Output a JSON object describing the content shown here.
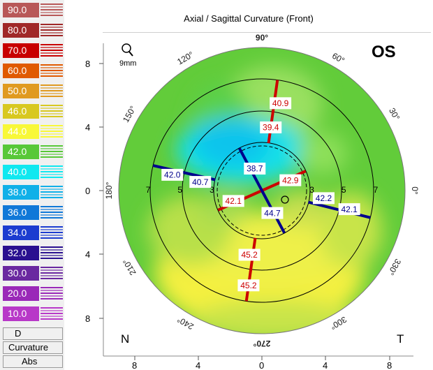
{
  "title": "Axial / Sagittal Curvature (Front)",
  "eye": "OS",
  "zoom_label": "9mm",
  "nasal_label": "N",
  "temporal_label": "T",
  "scale": {
    "items": [
      {
        "label": "90.0",
        "color": "#b85858"
      },
      {
        "label": "80.0",
        "color": "#a02828"
      },
      {
        "label": "70.0",
        "color": "#c80000"
      },
      {
        "label": "60.0",
        "color": "#e05a00"
      },
      {
        "label": "50.0",
        "color": "#e09a20"
      },
      {
        "label": "46.0",
        "color": "#d8c820"
      },
      {
        "label": "44.0",
        "color": "#f8f838"
      },
      {
        "label": "42.0",
        "color": "#58c838"
      },
      {
        "label": "40.0",
        "color": "#10e8f0"
      },
      {
        "label": "38.0",
        "color": "#10b0e8"
      },
      {
        "label": "36.0",
        "color": "#1078d8"
      },
      {
        "label": "34.0",
        "color": "#1c3cd0"
      },
      {
        "label": "32.0",
        "color": "#2a1090"
      },
      {
        "label": "30.0",
        "color": "#6a28a0"
      },
      {
        "label": "20.0",
        "color": "#9a28b8"
      },
      {
        "label": "10.0",
        "color": "#b838c8"
      }
    ],
    "d_label": "D",
    "curvature_label": "Curvature",
    "abs_label": "Abs"
  },
  "angles": [
    {
      "label": "90°",
      "deg": 90
    },
    {
      "label": "60°",
      "deg": 60
    },
    {
      "label": "30°",
      "deg": 30
    },
    {
      "label": "0°",
      "deg": 0
    },
    {
      "label": "330°",
      "deg": 330
    },
    {
      "label": "300°",
      "deg": 300
    },
    {
      "label": "270°",
      "deg": 270
    },
    {
      "label": "240°",
      "deg": 240
    },
    {
      "label": "210°",
      "deg": 210
    },
    {
      "label": "180°",
      "deg": 180
    },
    {
      "label": "150°",
      "deg": 150
    },
    {
      "label": "120°",
      "deg": 120
    }
  ],
  "y_ticks": [
    "8",
    "4",
    "0",
    "4",
    "8"
  ],
  "x_ticks": [
    "8",
    "4",
    "0",
    "4",
    "8"
  ],
  "ring_labels": {
    "r3": "3",
    "r5": "5",
    "r7": "7"
  },
  "meridians": {
    "steep": {
      "color": "#cc0000",
      "values": [
        {
          "text": "40.9",
          "deg": 78,
          "r": 5.6
        },
        {
          "text": "39.4",
          "deg": 82,
          "r": 4.0
        },
        {
          "text": "42.9",
          "deg": 20,
          "r": 1.9
        },
        {
          "text": "42.1",
          "deg": 200,
          "r": 1.9
        },
        {
          "text": "45.2",
          "deg": 259,
          "r": 4.1
        },
        {
          "text": "45.2",
          "deg": 262,
          "r": 6.0
        }
      ]
    },
    "flat": {
      "color": "#00008c",
      "values": [
        {
          "text": "38.7",
          "deg": 108,
          "r": 1.45
        },
        {
          "text": "44.7",
          "deg": 295,
          "r": 1.55
        },
        {
          "text": "42.0",
          "deg": 170,
          "r": 5.7
        },
        {
          "text": "40.7",
          "deg": 172,
          "r": 3.9
        },
        {
          "text": "42.2",
          "deg": 353,
          "r": 3.9
        },
        {
          "text": "42.1",
          "deg": 348,
          "r": 5.6
        }
      ]
    }
  }
}
